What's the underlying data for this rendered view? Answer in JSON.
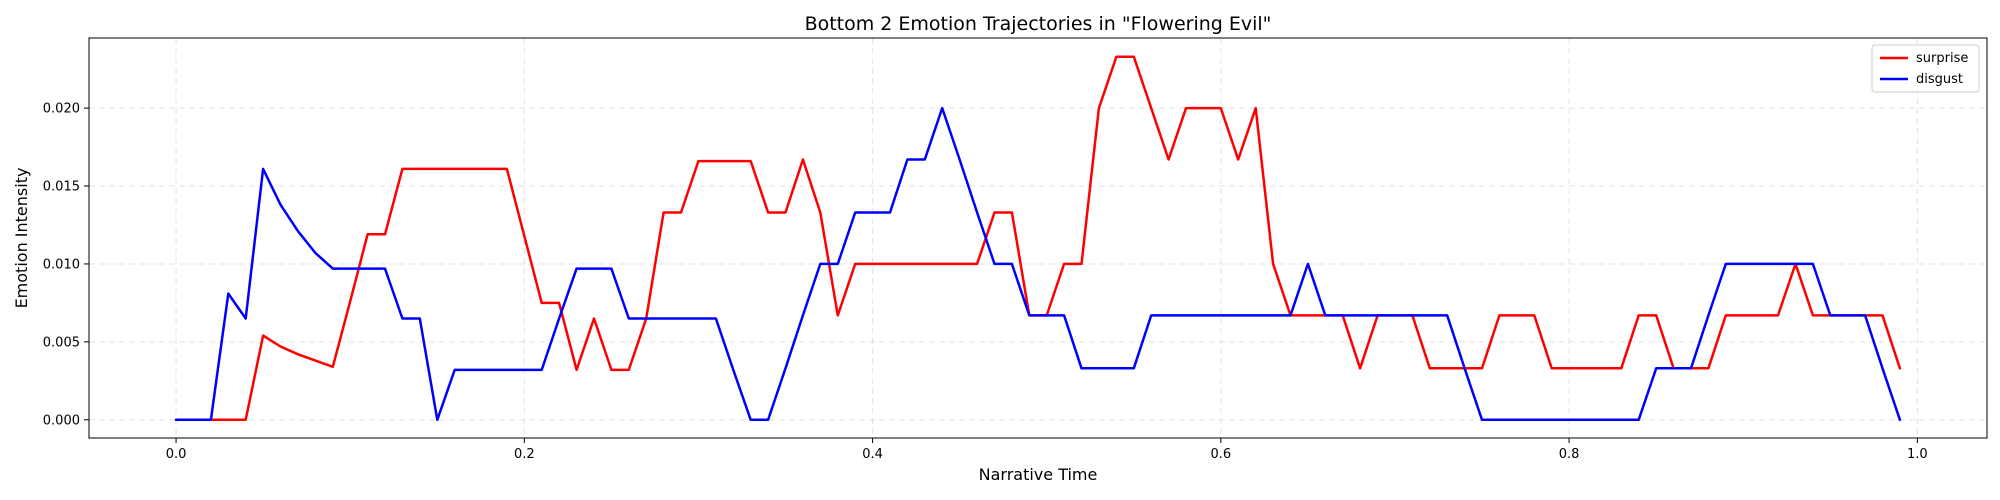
{
  "chart_data": {
    "type": "line",
    "title": "Bottom 2 Emotion Trajectories in \"Flowering Evil\"",
    "xlabel": "Narrative Time",
    "ylabel": "Emotion Intensity",
    "xlim": [
      -0.05,
      1.04
    ],
    "ylim": [
      -0.00117,
      0.0245
    ],
    "xticks": [
      0.0,
      0.2,
      0.4,
      0.6,
      0.8,
      1.0
    ],
    "xtick_labels": [
      "0.0",
      "0.2",
      "0.4",
      "0.6",
      "0.8",
      "1.0"
    ],
    "yticks": [
      0.0,
      0.005,
      0.01,
      0.015,
      0.02
    ],
    "ytick_labels": [
      "0.000",
      "0.005",
      "0.010",
      "0.015",
      "0.020"
    ],
    "grid": true,
    "legend_position": "top-right",
    "x": [
      0.0,
      0.01,
      0.02,
      0.03,
      0.04,
      0.05,
      0.06,
      0.07,
      0.08,
      0.09,
      0.1,
      0.11,
      0.12,
      0.13,
      0.14,
      0.15,
      0.16,
      0.17,
      0.18,
      0.19,
      0.2,
      0.21,
      0.22,
      0.23,
      0.24,
      0.25,
      0.26,
      0.27,
      0.28,
      0.29,
      0.3,
      0.31,
      0.32,
      0.33,
      0.34,
      0.35,
      0.36,
      0.37,
      0.38,
      0.39,
      0.4,
      0.41,
      0.42,
      0.43,
      0.44,
      0.45,
      0.46,
      0.47,
      0.48,
      0.49,
      0.5,
      0.51,
      0.52,
      0.53,
      0.54,
      0.55,
      0.56,
      0.57,
      0.58,
      0.59,
      0.6,
      0.61,
      0.62,
      0.63,
      0.64,
      0.65,
      0.66,
      0.67,
      0.68,
      0.69,
      0.7,
      0.71,
      0.72,
      0.73,
      0.74,
      0.75,
      0.76,
      0.77,
      0.78,
      0.79,
      0.8,
      0.81,
      0.82,
      0.83,
      0.84,
      0.85,
      0.86,
      0.87,
      0.88,
      0.89,
      0.9,
      0.91,
      0.92,
      0.93,
      0.94,
      0.95,
      0.96,
      0.97,
      0.98,
      0.99
    ],
    "series": [
      {
        "name": "surprise",
        "color": "#ff0000",
        "values": [
          0.0,
          0.0,
          0.0,
          0.0,
          0.0,
          0.0054,
          0.0047,
          0.0042,
          0.0038,
          0.0034,
          0.0076,
          0.0119,
          0.0119,
          0.0161,
          0.0161,
          0.0161,
          0.0161,
          0.0161,
          0.0161,
          0.0161,
          0.0118,
          0.0075,
          0.0075,
          0.0032,
          0.0065,
          0.0032,
          0.0032,
          0.0065,
          0.0133,
          0.0133,
          0.0166,
          0.0166,
          0.0166,
          0.0166,
          0.0133,
          0.0133,
          0.0167,
          0.0133,
          0.0067,
          0.01,
          0.01,
          0.01,
          0.01,
          0.01,
          0.01,
          0.01,
          0.01,
          0.0133,
          0.0133,
          0.0067,
          0.0067,
          0.01,
          0.01,
          0.02,
          0.0233,
          0.0233,
          0.02,
          0.0167,
          0.02,
          0.02,
          0.02,
          0.0167,
          0.02,
          0.01,
          0.0067,
          0.0067,
          0.0067,
          0.0067,
          0.0033,
          0.0067,
          0.0067,
          0.0067,
          0.0033,
          0.0033,
          0.0033,
          0.0033,
          0.0067,
          0.0067,
          0.0067,
          0.0033,
          0.0033,
          0.0033,
          0.0033,
          0.0033,
          0.0067,
          0.0067,
          0.0033,
          0.0033,
          0.0033,
          0.0067,
          0.0067,
          0.0067,
          0.0067,
          0.01,
          0.0067,
          0.0067,
          0.0067,
          0.0067,
          0.0067,
          0.0033
        ]
      },
      {
        "name": "disgust",
        "color": "#0000ff",
        "values": [
          0.0,
          0.0,
          0.0,
          0.0081,
          0.0065,
          0.0161,
          0.0138,
          0.0121,
          0.0107,
          0.0097,
          0.0097,
          0.0097,
          0.0097,
          0.0065,
          0.0065,
          0.0,
          0.0032,
          0.0032,
          0.0032,
          0.0032,
          0.0032,
          0.0032,
          0.0065,
          0.0097,
          0.0097,
          0.0097,
          0.0065,
          0.0065,
          0.0065,
          0.0065,
          0.0065,
          0.0065,
          0.0032,
          0.0,
          0.0,
          0.0033,
          0.0067,
          0.01,
          0.01,
          0.0133,
          0.0133,
          0.0133,
          0.0167,
          0.0167,
          0.02,
          0.0167,
          0.0133,
          0.01,
          0.01,
          0.0067,
          0.0067,
          0.0067,
          0.0033,
          0.0033,
          0.0033,
          0.0033,
          0.0067,
          0.0067,
          0.0067,
          0.0067,
          0.0067,
          0.0067,
          0.0067,
          0.0067,
          0.0067,
          0.01,
          0.0067,
          0.0067,
          0.0067,
          0.0067,
          0.0067,
          0.0067,
          0.0067,
          0.0067,
          0.0033,
          0.0,
          0.0,
          0.0,
          0.0,
          0.0,
          0.0,
          0.0,
          0.0,
          0.0,
          0.0,
          0.0033,
          0.0033,
          0.0033,
          0.0067,
          0.01,
          0.01,
          0.01,
          0.01,
          0.01,
          0.01,
          0.0067,
          0.0067,
          0.0067,
          0.0033,
          0.0
        ]
      }
    ]
  }
}
